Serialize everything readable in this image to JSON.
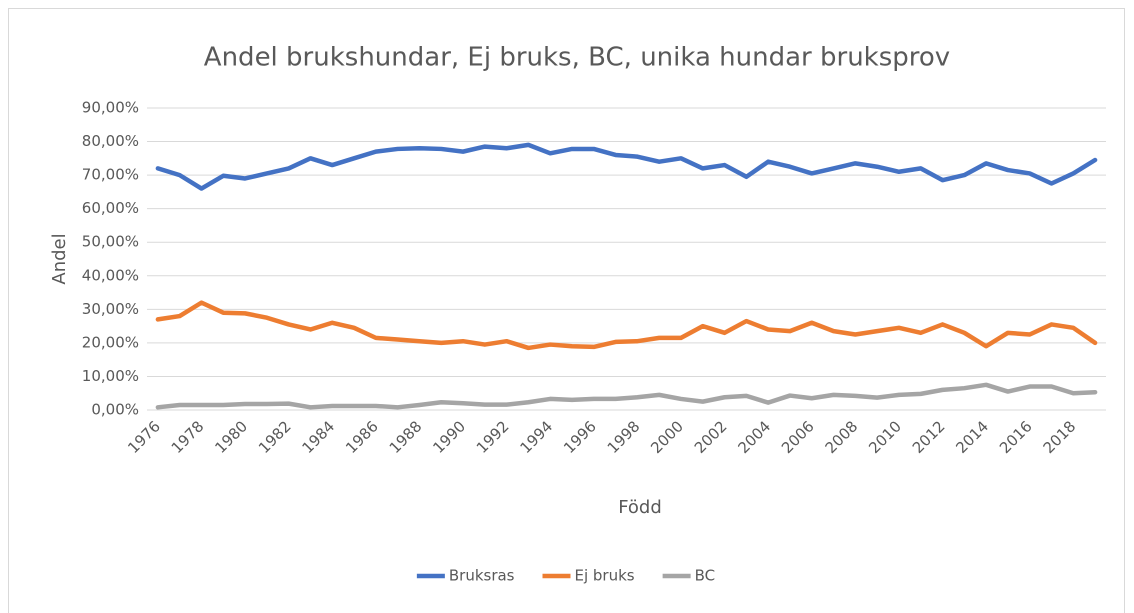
{
  "chart_data": {
    "type": "line",
    "title": "Andel brukshundar, Ej bruks, BC, unika hundar bruksprov",
    "x_label": "Född",
    "y_label": "Andel",
    "categories": [
      "1976",
      null,
      "1978",
      null,
      "1980",
      null,
      "1982",
      null,
      "1984",
      null,
      "1986",
      null,
      "1988",
      null,
      "1990",
      null,
      "1992",
      null,
      "1994",
      null,
      "1996",
      null,
      "1998",
      null,
      "2000",
      null,
      "2002",
      null,
      "2004",
      null,
      "2006",
      null,
      "2008",
      null,
      "2010",
      null,
      "2012",
      null,
      "2014",
      null,
      "2016",
      null,
      "2018",
      null
    ],
    "series": [
      {
        "name": "Bruksras",
        "color": "#4472c4",
        "values": [
          72,
          70,
          66,
          69.8,
          69,
          70.5,
          72,
          75,
          73,
          75,
          77,
          77.8,
          78,
          77.8,
          77,
          78.5,
          78,
          79,
          76.5,
          77.8,
          77.8,
          76,
          75.5,
          74,
          75,
          72,
          73,
          69.5,
          74,
          72.5,
          70.5,
          72,
          73.5,
          72.5,
          71,
          72,
          68.5,
          70,
          73.5,
          71.5,
          70.5,
          67.5,
          70.5,
          74.5
        ]
      },
      {
        "name": "Ej bruks",
        "color": "#ed7d31",
        "values": [
          27,
          28,
          32,
          29,
          28.8,
          27.5,
          25.5,
          24,
          26,
          24.5,
          21.5,
          21,
          20.5,
          20,
          20.5,
          19.5,
          20.5,
          18.5,
          19.5,
          19,
          18.8,
          20.3,
          20.5,
          21.5,
          21.5,
          25,
          23,
          26.5,
          24,
          23.5,
          26,
          23.5,
          22.5,
          23.5,
          24.5,
          23,
          25.5,
          23,
          19,
          23,
          22.5,
          25.5,
          24.5,
          20
        ]
      },
      {
        "name": "BC",
        "color": "#a5a5a5",
        "values": [
          0.8,
          1.5,
          1.5,
          1.5,
          1.8,
          1.8,
          1.9,
          0.8,
          1.2,
          1.2,
          1.2,
          0.8,
          1.5,
          2.3,
          2,
          1.6,
          1.6,
          2.3,
          3.3,
          3,
          3.3,
          3.3,
          3.8,
          4.5,
          3.3,
          2.5,
          3.8,
          4.2,
          2.2,
          4.3,
          3.5,
          4.5,
          4.2,
          3.7,
          4.5,
          4.8,
          6,
          6.5,
          7.5,
          5.5,
          7,
          7,
          5,
          5.3
        ]
      }
    ],
    "ylim": [
      0,
      90
    ],
    "yticks": [
      {
        "value": 0,
        "label": "0,00%"
      },
      {
        "value": 10,
        "label": "10,00%"
      },
      {
        "value": 20,
        "label": "20,00%"
      },
      {
        "value": 30,
        "label": "30,00%"
      },
      {
        "value": 40,
        "label": "40,00%"
      },
      {
        "value": 50,
        "label": "50,00%"
      },
      {
        "value": 60,
        "label": "60,00%"
      },
      {
        "value": 70,
        "label": "70,00%"
      },
      {
        "value": 80,
        "label": "80,00%"
      },
      {
        "value": 90,
        "label": "90,00%"
      }
    ],
    "grid": true,
    "legend": "bottom"
  }
}
